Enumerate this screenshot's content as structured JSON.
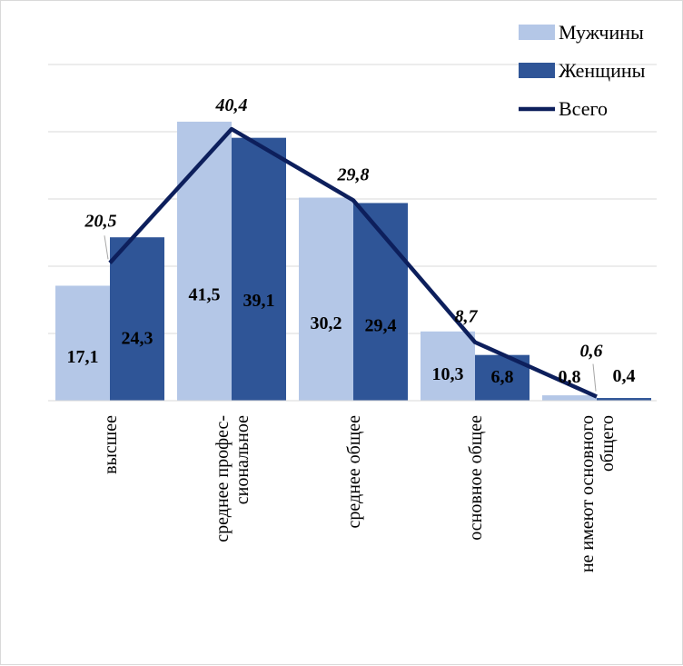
{
  "chart_data": {
    "type": "bar",
    "categories": [
      [
        "высшее"
      ],
      [
        "среднее профес-",
        "сиональное"
      ],
      [
        "среднее общее"
      ],
      [
        "основное общее"
      ],
      [
        "не имеют основного",
        "общего"
      ]
    ],
    "series": [
      {
        "name": "Мужчины",
        "kind": "bar",
        "color": "#b4c7e7",
        "values": [
          17.1,
          41.5,
          30.2,
          10.3,
          0.8
        ],
        "labels": [
          "17,1",
          "41,5",
          "30,2",
          "10,3",
          "0,8"
        ]
      },
      {
        "name": "Женщины",
        "kind": "bar",
        "color": "#2f5597",
        "values": [
          24.3,
          39.1,
          29.4,
          6.8,
          0.4
        ],
        "labels": [
          "24,3",
          "39,1",
          "29,4",
          "6,8",
          "0,4"
        ]
      },
      {
        "name": "Всего",
        "kind": "line",
        "color": "#0d1f5c",
        "values": [
          20.5,
          40.4,
          29.8,
          8.7,
          0.6
        ],
        "labels": [
          "20,5",
          "40,4",
          "29,8",
          "8,7",
          "0,6"
        ]
      }
    ],
    "ylim": [
      0,
      50
    ],
    "grid": true,
    "legend": "top-right",
    "title": "",
    "xlabel": "",
    "ylabel": ""
  }
}
